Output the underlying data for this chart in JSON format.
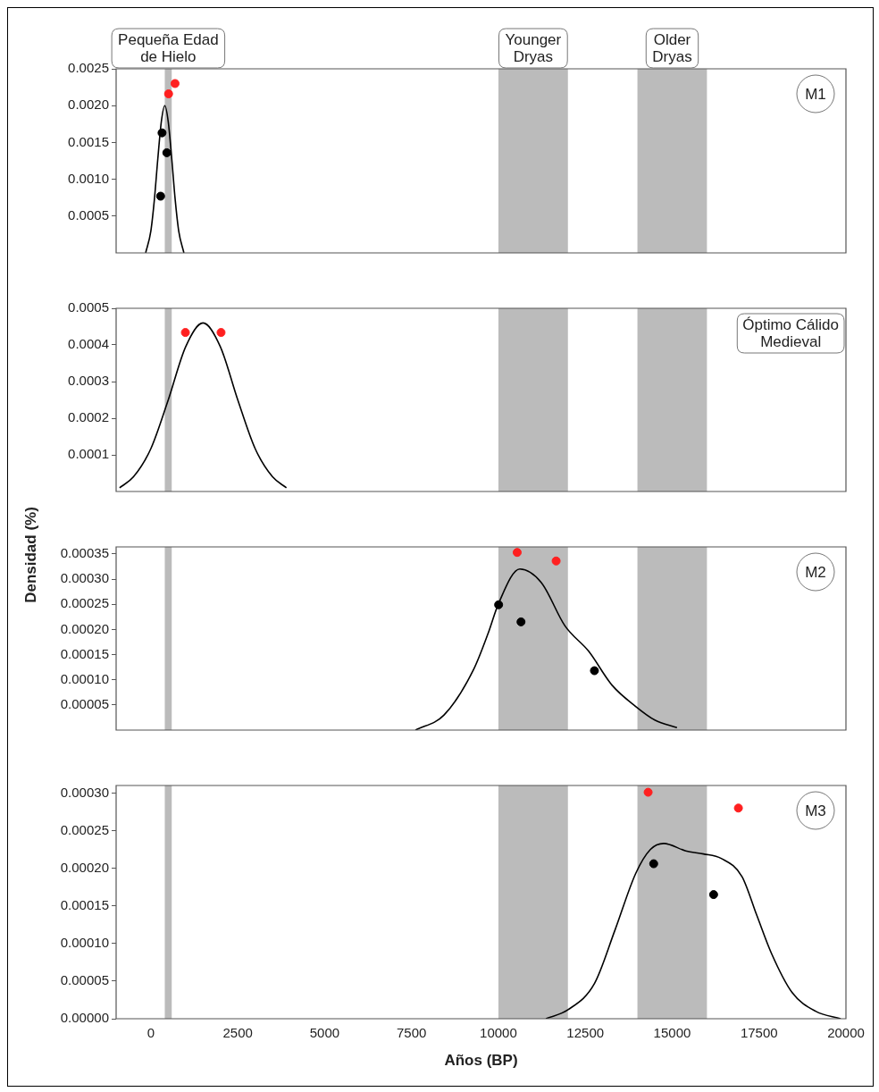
{
  "chart_data": [
    {
      "type": "line",
      "xlim": [
        -1000,
        20000
      ],
      "ylim": [
        0,
        0.0025
      ],
      "yticks": [
        0.0005,
        {
          "value": 0.001,
          "label": "0.0010"
        },
        0.0015,
        {
          "value": 0.002,
          "label": "0.0020"
        },
        0.0025
      ],
      "tick_labels": "y",
      "bands": [
        {
          "axis": "x",
          "from": 400,
          "to": 600,
          "label": "Pequeña Edad\nde Hielo",
          "color": "#bbbbbb"
        },
        {
          "axis": "x",
          "from": 10000,
          "to": 12000,
          "label": "Younger\nDryas",
          "color": "#bbbbbb"
        },
        {
          "axis": "x",
          "from": 14000,
          "to": 16000,
          "label": "Older\nDryas",
          "color": "#bbbbbb"
        }
      ],
      "annotations": [
        "M1"
      ],
      "series": [
        {
          "type": "line",
          "color": "#000000",
          "marker": "none",
          "x": [
            -150,
            0,
            100,
            200,
            300,
            400,
            500,
            600,
            700,
            800,
            950
          ],
          "values": [
            0,
            0.0003,
            0.00072,
            0.00128,
            0.00178,
            0.002,
            0.00178,
            0.00128,
            0.00072,
            0.0003,
            0
          ]
        },
        {
          "type": "scatter",
          "color": "#000000",
          "marker": "circle",
          "x": [
            321,
            458,
            280
          ],
          "values": [
            0.00163,
            0.00136,
            0.00077
          ]
        },
        {
          "type": "scatter",
          "color": "#ff2020",
          "marker": "circle",
          "x": [
            695,
            509
          ],
          "values": [
            0.0023,
            0.00216
          ]
        }
      ]
    },
    {
      "type": "line",
      "xlim": [
        -1000,
        20000
      ],
      "ylim": [
        0,
        0.0005
      ],
      "yticks": [
        0.0001,
        0.0002,
        0.0003,
        0.0004,
        0.0005
      ],
      "tick_labels": "y",
      "ylabel": "Densidad (%)",
      "bands": [
        {
          "axis": "x",
          "from": 400,
          "to": 600,
          "color": "#bbbbbb"
        },
        {
          "axis": "x",
          "from": 10000,
          "to": 12000,
          "color": "#bbbbbb"
        },
        {
          "axis": "x",
          "from": 14000,
          "to": 16000,
          "color": "#bbbbbb"
        }
      ],
      "annotations": [
        "Óptimo Cálido\nMedieval"
      ],
      "series": [
        {
          "type": "line",
          "color": "#000000",
          "marker": "none",
          "x": [
            -900,
            -500,
            0,
            500,
            1000,
            1500,
            2000,
            2500,
            3000,
            3500,
            3900
          ],
          "values": [
            1e-05,
            4e-05,
            0.000117,
            0.00025,
            0.000395,
            0.00046,
            0.000395,
            0.00025,
            0.000117,
            4e-05,
            1e-05
          ]
        },
        {
          "type": "scatter",
          "color": "#ff2020",
          "marker": "circle",
          "x": [
            993,
            2019
          ],
          "values": [
            0.000434,
            0.000434
          ]
        }
      ]
    },
    {
      "type": "line",
      "xlim": [
        -1000,
        20000
      ],
      "ylim": [
        0,
        0.000364
      ],
      "yticks": [
        {
          "value": 5e-05,
          "label": "0.00005"
        },
        {
          "value": 0.0001,
          "label": "0.00010"
        },
        {
          "value": 0.00015,
          "label": "0.00015"
        },
        {
          "value": 0.0002,
          "label": "0.00020"
        },
        {
          "value": 0.00025,
          "label": "0.00025"
        },
        {
          "value": 0.0003,
          "label": "0.00030"
        },
        {
          "value": 0.00035,
          "label": "0.00035"
        }
      ],
      "tick_labels": "y",
      "bands": [
        {
          "axis": "x",
          "from": 400,
          "to": 600,
          "color": "#bbbbbb"
        },
        {
          "axis": "x",
          "from": 10000,
          "to": 12000,
          "color": "#bbbbbb"
        },
        {
          "axis": "x",
          "from": 14000,
          "to": 16000,
          "color": "#bbbbbb"
        }
      ],
      "annotations": [
        "M2"
      ],
      "series": [
        {
          "type": "line",
          "color": "#000000",
          "marker": "none",
          "x": [
            7613,
            8435,
            9283,
            9708,
            10006,
            10617,
            11235,
            11915,
            12593,
            13272,
            13950,
            14500,
            15138
          ],
          "values": [
            0,
            3e-05,
            0.00012,
            0.000193,
            0.000252,
            0.00032,
            0.000293,
            0.000207,
            0.000157,
            8.9e-05,
            4.7e-05,
            2e-05,
            5e-06
          ]
        },
        {
          "type": "scatter",
          "color": "#000000",
          "marker": "circle",
          "x": [
            10006,
            10650,
            12763
          ],
          "values": [
            0.000249,
            0.000215,
            0.000118
          ]
        },
        {
          "type": "scatter",
          "color": "#ff2020",
          "marker": "circle",
          "x": [
            10540,
            11661
          ],
          "values": [
            0.000353,
            0.000336
          ]
        }
      ]
    },
    {
      "type": "line",
      "xlim": [
        -1000,
        20000
      ],
      "xticks": [
        0,
        2500,
        5000,
        7500,
        10000,
        12500,
        15000,
        17500,
        20000
      ],
      "ylim": [
        0,
        0.00031
      ],
      "yticks": [
        {
          "value": 0,
          "label": "0.00000"
        },
        {
          "value": 5e-05,
          "label": "0.00005"
        },
        {
          "value": 0.0001,
          "label": "0.00010"
        },
        {
          "value": 0.00015,
          "label": "0.00015"
        },
        {
          "value": 0.0002,
          "label": "0.00020"
        },
        {
          "value": 0.00025,
          "label": "0.00025"
        },
        {
          "value": 0.0003,
          "label": "0.00030"
        }
      ],
      "xlabel": "Años (BP)",
      "bands": [
        {
          "axis": "x",
          "from": 400,
          "to": 600,
          "color": "#bbbbbb"
        },
        {
          "axis": "x",
          "from": 10000,
          "to": 12000,
          "color": "#bbbbbb"
        },
        {
          "axis": "x",
          "from": 14000,
          "to": 16000,
          "color": "#bbbbbb"
        }
      ],
      "annotations": [
        "M3"
      ],
      "series": [
        {
          "type": "line",
          "color": "#000000",
          "marker": "none",
          "x": [
            11366,
            12003,
            12767,
            13356,
            13950,
            14375,
            14757,
            15393,
            15902,
            16411,
            17007,
            17430,
            17855,
            18448,
            19128,
            19849
          ],
          "values": [
            0,
            1.2e-05,
            4.7e-05,
            0.000118,
            0.000193,
            0.000225,
            0.000233,
            0.000223,
            0.000219,
            0.000213,
            0.000189,
            0.000138,
            8.7e-05,
            3.5e-05,
            1e-05,
            0
          ]
        },
        {
          "type": "scatter",
          "color": "#000000",
          "marker": "circle",
          "x": [
            14468,
            16192
          ],
          "values": [
            0.000206,
            0.000165
          ]
        },
        {
          "type": "scatter",
          "color": "#ff2020",
          "marker": "circle",
          "x": [
            14308,
            16905
          ],
          "values": [
            0.000301,
            0.00028
          ]
        }
      ]
    }
  ]
}
